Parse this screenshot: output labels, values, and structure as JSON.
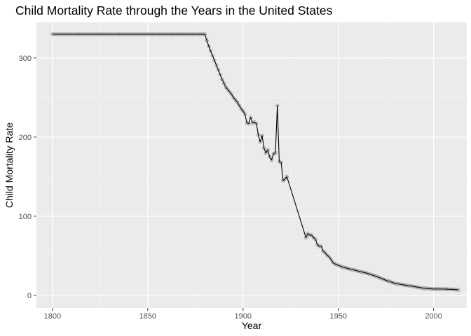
{
  "chart_data": {
    "type": "line",
    "title": "Child Mortality Rate through the Years in the United States",
    "xlabel": "Year",
    "ylabel": "Child Mortality Rate",
    "xlim": [
      1791.6,
      2017.4
    ],
    "ylim": [
      -16,
      345
    ],
    "x_ticks": [
      1800,
      1850,
      1900,
      1950,
      2000
    ],
    "x_tick_labels": [
      "1800",
      "1850",
      "1900",
      "1950",
      "2000"
    ],
    "y_ticks": [
      0,
      100,
      200,
      300
    ],
    "y_tick_labels": [
      "0",
      "100",
      "200",
      "300"
    ],
    "grid": true,
    "points_marker": "grey open circles with black line",
    "series": [
      {
        "points": [
          [
            1800,
            330
          ],
          [
            1880,
            330
          ],
          [
            1881,
            322
          ],
          [
            1882,
            315
          ],
          [
            1883,
            309
          ],
          [
            1884,
            303
          ],
          [
            1885,
            297
          ],
          [
            1886,
            291
          ],
          [
            1887,
            285
          ],
          [
            1888,
            279
          ],
          [
            1889,
            273
          ],
          [
            1890,
            268
          ],
          [
            1891,
            263
          ],
          [
            1892,
            260
          ],
          [
            1893,
            257
          ],
          [
            1894,
            254
          ],
          [
            1895,
            250
          ],
          [
            1896,
            247
          ],
          [
            1897,
            244
          ],
          [
            1898,
            240
          ],
          [
            1899,
            236
          ],
          [
            1900,
            233
          ],
          [
            1901,
            229
          ],
          [
            1902,
            218
          ],
          [
            1903,
            217
          ],
          [
            1904,
            225
          ],
          [
            1905,
            218
          ],
          [
            1906,
            219
          ],
          [
            1907,
            217
          ],
          [
            1908,
            203
          ],
          [
            1909,
            194
          ],
          [
            1910,
            202
          ],
          [
            1911,
            186
          ],
          [
            1912,
            180
          ],
          [
            1913,
            184
          ],
          [
            1914,
            175
          ],
          [
            1915,
            171
          ],
          [
            1916,
            179
          ],
          [
            1917,
            180
          ],
          [
            1918,
            240
          ],
          [
            1919,
            169
          ],
          [
            1920,
            168
          ],
          [
            1921,
            145
          ],
          [
            1922,
            147
          ],
          [
            1923,
            150
          ],
          [
            1933,
            73
          ],
          [
            1934,
            78
          ],
          [
            1935,
            76
          ],
          [
            1936,
            76
          ],
          [
            1937,
            73
          ],
          [
            1938,
            71
          ],
          [
            1939,
            64
          ],
          [
            1940,
            62
          ],
          [
            1941,
            62
          ],
          [
            1942,
            56
          ],
          [
            1943,
            54
          ],
          [
            1944,
            51
          ],
          [
            1945,
            49
          ],
          [
            1946,
            46
          ],
          [
            1947,
            42
          ],
          [
            1948,
            40
          ],
          [
            1949,
            39
          ],
          [
            1950,
            38
          ],
          [
            1952,
            36
          ],
          [
            1955,
            34
          ],
          [
            1960,
            31
          ],
          [
            1965,
            28
          ],
          [
            1970,
            24
          ],
          [
            1975,
            19
          ],
          [
            1980,
            15
          ],
          [
            1985,
            13
          ],
          [
            1990,
            11
          ],
          [
            1995,
            9
          ],
          [
            2000,
            8
          ],
          [
            2005,
            8
          ],
          [
            2010,
            7.5
          ],
          [
            2013,
            7
          ]
        ]
      }
    ]
  }
}
